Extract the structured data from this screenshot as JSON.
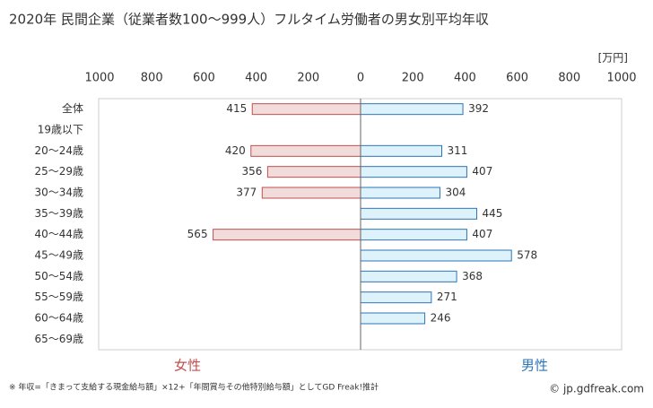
{
  "chart_data": {
    "type": "butterfly",
    "title": "2020年 民間企業（従業者数100～999人）フルタイム労働者の男女別平均年収",
    "unit": "[万円]",
    "categories": [
      "全体",
      "19歳以下",
      "20～24歳",
      "25～29歳",
      "30～34歳",
      "35～39歳",
      "40～44歳",
      "45～49歳",
      "50～54歳",
      "55～59歳",
      "60～64歳",
      "65～69歳"
    ],
    "series": [
      {
        "name": "女性",
        "color": "#c0504d",
        "fill": "#f2dcdb",
        "side": "left",
        "values": [
          415,
          null,
          420,
          356,
          377,
          null,
          565,
          null,
          null,
          null,
          null,
          null
        ]
      },
      {
        "name": "男性",
        "color": "#2e75b6",
        "fill": "#ddf2fb",
        "side": "right",
        "values": [
          392,
          null,
          311,
          407,
          304,
          445,
          407,
          578,
          368,
          271,
          246,
          null
        ]
      }
    ],
    "xlim": [
      0,
      1000
    ],
    "xticks": [
      0,
      200,
      400,
      600,
      800,
      1000
    ],
    "footnote": "※ 年収=「きまって支給する現金給与額」×12+「年間賞与その他特別給与額」としてGD Freak!推計",
    "copyright": "© jp.gdfreak.com"
  }
}
